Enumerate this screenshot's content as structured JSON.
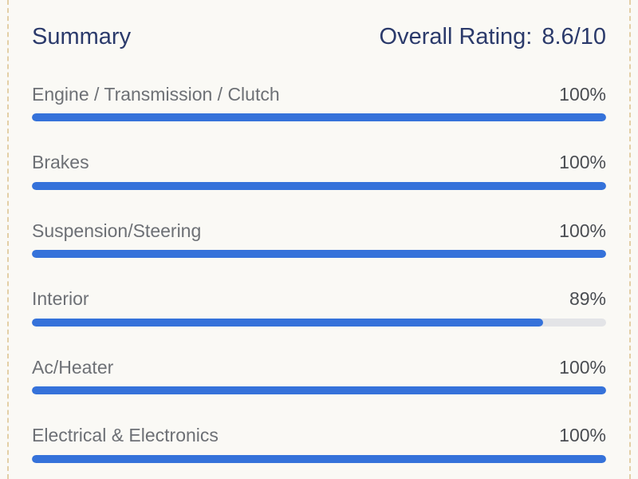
{
  "header": {
    "title": "Summary",
    "rating_label": "Overall Rating:",
    "rating": "8.6/10"
  },
  "range": [
    0,
    100
  ],
  "items": [
    {
      "label": "Engine / Transmission / Clutch",
      "value": 100,
      "value_label": "100%"
    },
    {
      "label": "Brakes",
      "value": 100,
      "value_label": "100%"
    },
    {
      "label": "Suspension/Steering",
      "value": 100,
      "value_label": "100%"
    },
    {
      "label": "Interior",
      "value": 89,
      "value_label": "89%"
    },
    {
      "label": "Ac/Heater",
      "value": 100,
      "value_label": "100%"
    },
    {
      "label": "Electrical & Electronics",
      "value": 100,
      "value_label": "100%"
    }
  ]
}
